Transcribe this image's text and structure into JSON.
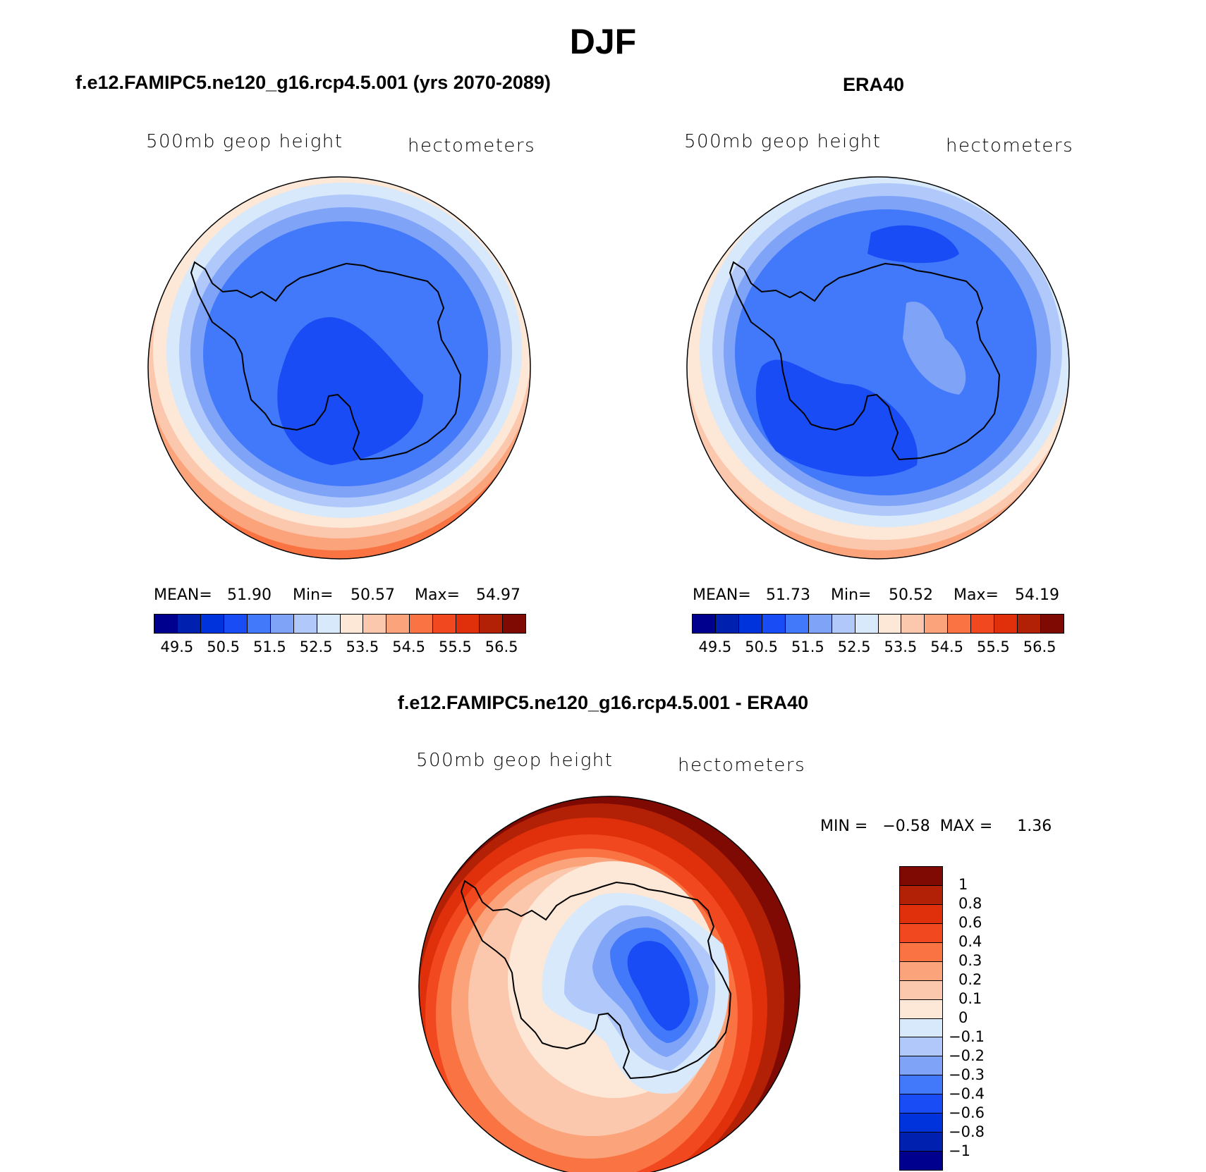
{
  "figure": {
    "title": "DJF",
    "colors": [
      "#00008e",
      "#0021b0",
      "#0033db",
      "#1a4cf5",
      "#4278fa",
      "#7fa3f7",
      "#b0c9fa",
      "#d7e9fb",
      "#fde7d6",
      "#fcc8ad",
      "#fba47c",
      "#f97343",
      "#f2481f",
      "#e0300b",
      "#b22106",
      "#7f0a04"
    ]
  },
  "panels": {
    "model": {
      "title": "f.e12.FAMIPC5.ne120_g16.rcp4.5.001 (yrs 2070-2089)",
      "variable": "500mb  geop  height",
      "units": "hectometers",
      "mean_label": "MEAN=",
      "mean": "51.90",
      "min_label": "Min=",
      "min": "50.57",
      "max_label": "Max=",
      "max": "54.97",
      "colorbar_labels": [
        "49.5",
        "50.5",
        "51.5",
        "52.5",
        "53.5",
        "54.5",
        "55.5",
        "56.5"
      ]
    },
    "obs": {
      "title": "ERA40",
      "variable": "500mb  geop  height",
      "units": "hectometers",
      "mean_label": "MEAN=",
      "mean": "51.73",
      "min_label": "Min=",
      "min": "50.52",
      "max_label": "Max=",
      "max": "54.19",
      "colorbar_labels": [
        "49.5",
        "50.5",
        "51.5",
        "52.5",
        "53.5",
        "54.5",
        "55.5",
        "56.5"
      ]
    },
    "diff": {
      "title": "f.e12.FAMIPC5.ne120_g16.rcp4.5.001 - ERA40",
      "variable": "500mb  geop  height",
      "units": "hectometers",
      "minmax_text": "MIN =   −0.58  MAX =     1.36",
      "min": -0.58,
      "max": 1.36,
      "colorbar_labels": [
        "1",
        "0.8",
        "0.6",
        "0.4",
        "0.3",
        "0.2",
        "0.1",
        "0",
        "−0.1",
        "−0.2",
        "−0.3",
        "−0.4",
        "−0.6",
        "−0.8",
        "−1"
      ],
      "colors": [
        "#7f0a04",
        "#b22106",
        "#e0300b",
        "#f2481f",
        "#f97343",
        "#fba47c",
        "#fcc8ad",
        "#fde7d6",
        "#d7e9fb",
        "#b0c9fa",
        "#7fa3f7",
        "#4278fa",
        "#1a4cf5",
        "#0033db",
        "#0021b0",
        "#00008e"
      ]
    }
  }
}
